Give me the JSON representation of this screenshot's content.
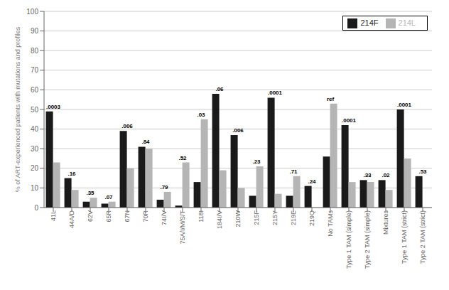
{
  "chart_data": {
    "type": "bar",
    "categories": [
      "41L",
      "44A/D",
      "62V",
      "65R",
      "67N",
      "70R",
      "74I/V",
      "75A/I/M/S/T",
      "118I",
      "184I/V",
      "210W",
      "215F",
      "215Y",
      "219E",
      "219Q",
      "No TAMs",
      "Type 1 TAM (simple)",
      "Type 2 TAM (simple)",
      "Mixtures",
      "Type 1 TAM (strict)",
      "Type 2 TAM (strict)"
    ],
    "series": [
      {
        "name": "214F",
        "color": "#1a1a1a",
        "values": [
          49,
          15,
          3,
          2,
          39,
          31,
          4,
          1,
          13,
          58,
          37,
          6,
          56,
          6,
          11,
          26,
          42,
          14,
          14,
          50,
          16
        ]
      },
      {
        "name": "214L",
        "color": "#b5b5b5",
        "values": [
          23,
          9,
          5,
          3,
          20,
          30,
          8,
          23,
          45,
          19,
          10,
          21,
          7,
          16,
          0,
          53,
          13,
          13,
          9,
          25,
          0
        ]
      }
    ],
    "annotations": [
      ".0003",
      ".16",
      ".35",
      ".07",
      ".006",
      ".84",
      ".79",
      ".52",
      ".03",
      ".06",
      ".006",
      ".23",
      ".0001",
      ".71",
      ".24",
      "ref",
      ".0001",
      ".33",
      ".02",
      ".0001",
      ".53"
    ],
    "ylabel": "% of ART-experienced patients with mutations and profiles",
    "ylim": [
      0,
      100
    ],
    "yticks": [
      0,
      10,
      20,
      30,
      40,
      50,
      60,
      70,
      80,
      90,
      100
    ],
    "grid": true,
    "legend": "upper right"
  }
}
